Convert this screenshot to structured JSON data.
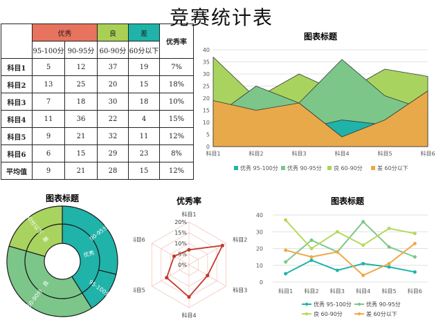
{
  "title": "竞赛统计表",
  "table": {
    "group_headers": [
      {
        "label": "优秀",
        "color": "#E8735E"
      },
      {
        "label": "良",
        "color": "#A9CF55"
      },
      {
        "label": "差",
        "color": "#1FB3A9"
      }
    ],
    "rate_header": "优秀率",
    "sub_headers": [
      "95-100分",
      "90-95分",
      "60-90分",
      "60分以下"
    ],
    "rows": [
      {
        "label": "科目1",
        "cells": [
          "5",
          "12",
          "37",
          "19",
          "7%"
        ]
      },
      {
        "label": "科目2",
        "cells": [
          "13",
          "25",
          "20",
          "15",
          "18%"
        ]
      },
      {
        "label": "科目3",
        "cells": [
          "7",
          "18",
          "30",
          "18",
          "10%"
        ]
      },
      {
        "label": "科目4",
        "cells": [
          "11",
          "36",
          "22",
          "4",
          "15%"
        ]
      },
      {
        "label": "科目5",
        "cells": [
          "9",
          "21",
          "32",
          "11",
          "12%"
        ]
      },
      {
        "label": "科目6",
        "cells": [
          "6",
          "15",
          "29",
          "23",
          "8%"
        ]
      },
      {
        "label": "平均值",
        "cells": [
          "9",
          "21",
          "28",
          "15",
          "12%"
        ]
      }
    ]
  },
  "chart_data": [
    {
      "type": "area",
      "title": "图表标题",
      "categories": [
        "科目1",
        "科目2",
        "科目3",
        "科目4",
        "科目5",
        "科目6"
      ],
      "ylim": [
        0,
        40
      ],
      "yticks": [
        0,
        5,
        10,
        15,
        20,
        25,
        30,
        35,
        40
      ],
      "grid": true,
      "legend": "bottom",
      "series": [
        {
          "name": "优秀 95-100分",
          "values": [
            5,
            13,
            7,
            11,
            9,
            6
          ],
          "color": "#1FB3A9"
        },
        {
          "name": "优秀 90-95分",
          "values": [
            12,
            25,
            18,
            36,
            21,
            15
          ],
          "color": "#7CC68A"
        },
        {
          "name": "良 60-90分",
          "values": [
            37,
            20,
            30,
            22,
            32,
            29
          ],
          "color": "#A9D35F"
        },
        {
          "name": "差 60分以下",
          "values": [
            19,
            15,
            18,
            4,
            11,
            23
          ],
          "color": "#E8A94A"
        }
      ]
    },
    {
      "type": "pie",
      "title": "图表标题",
      "rings": [
        {
          "segments": [
            {
              "label": "优秀",
              "value": 30,
              "color": "#1FB3A9"
            },
            {
              "label": "良",
              "value": 28,
              "color": "#7CC68A"
            },
            {
              "label": "差",
              "value": 15,
              "color": "#A9D35F"
            }
          ]
        },
        {
          "segments": [
            {
              "label": "90-95分",
              "value": 21,
              "color": "#1FB3A9"
            },
            {
              "label": "95-100分",
              "value": 9,
              "color": "#1FB3A9"
            },
            {
              "label": "60-90分",
              "value": 28,
              "color": "#7CC68A"
            },
            {
              "label": "60分以下",
              "value": 15,
              "color": "#A9D35F"
            }
          ]
        }
      ]
    },
    {
      "type": "radar",
      "title": "优秀率",
      "categories": [
        "科目1",
        "科目2",
        "科目3",
        "科目4",
        "科目5",
        "科目6"
      ],
      "rlim": [
        0,
        20
      ],
      "rticks": [
        "0%",
        "5%",
        "10%",
        "15%",
        "20%"
      ],
      "values": [
        7,
        18,
        10,
        15,
        12,
        8
      ],
      "color": "#C0392B"
    },
    {
      "type": "line",
      "title": "图表标题",
      "categories": [
        "科目1",
        "科目2",
        "科目3",
        "科目4",
        "科目5",
        "科目6"
      ],
      "ylim": [
        0,
        40
      ],
      "yticks": [
        0,
        10,
        20,
        30,
        40
      ],
      "grid": true,
      "legend": "bottom",
      "series": [
        {
          "name": "优秀 95-100分",
          "values": [
            5,
            13,
            7,
            11,
            9,
            6
          ],
          "color": "#1FB3A9"
        },
        {
          "name": "优秀 90-95分",
          "values": [
            12,
            25,
            18,
            36,
            21,
            15
          ],
          "color": "#7CC68A"
        },
        {
          "name": "良 60-90分",
          "values": [
            37,
            20,
            30,
            22,
            32,
            29
          ],
          "color": "#B5D95A"
        },
        {
          "name": "差 60分以下",
          "values": [
            19,
            15,
            18,
            4,
            11,
            23
          ],
          "color": "#F0A848"
        }
      ]
    }
  ]
}
